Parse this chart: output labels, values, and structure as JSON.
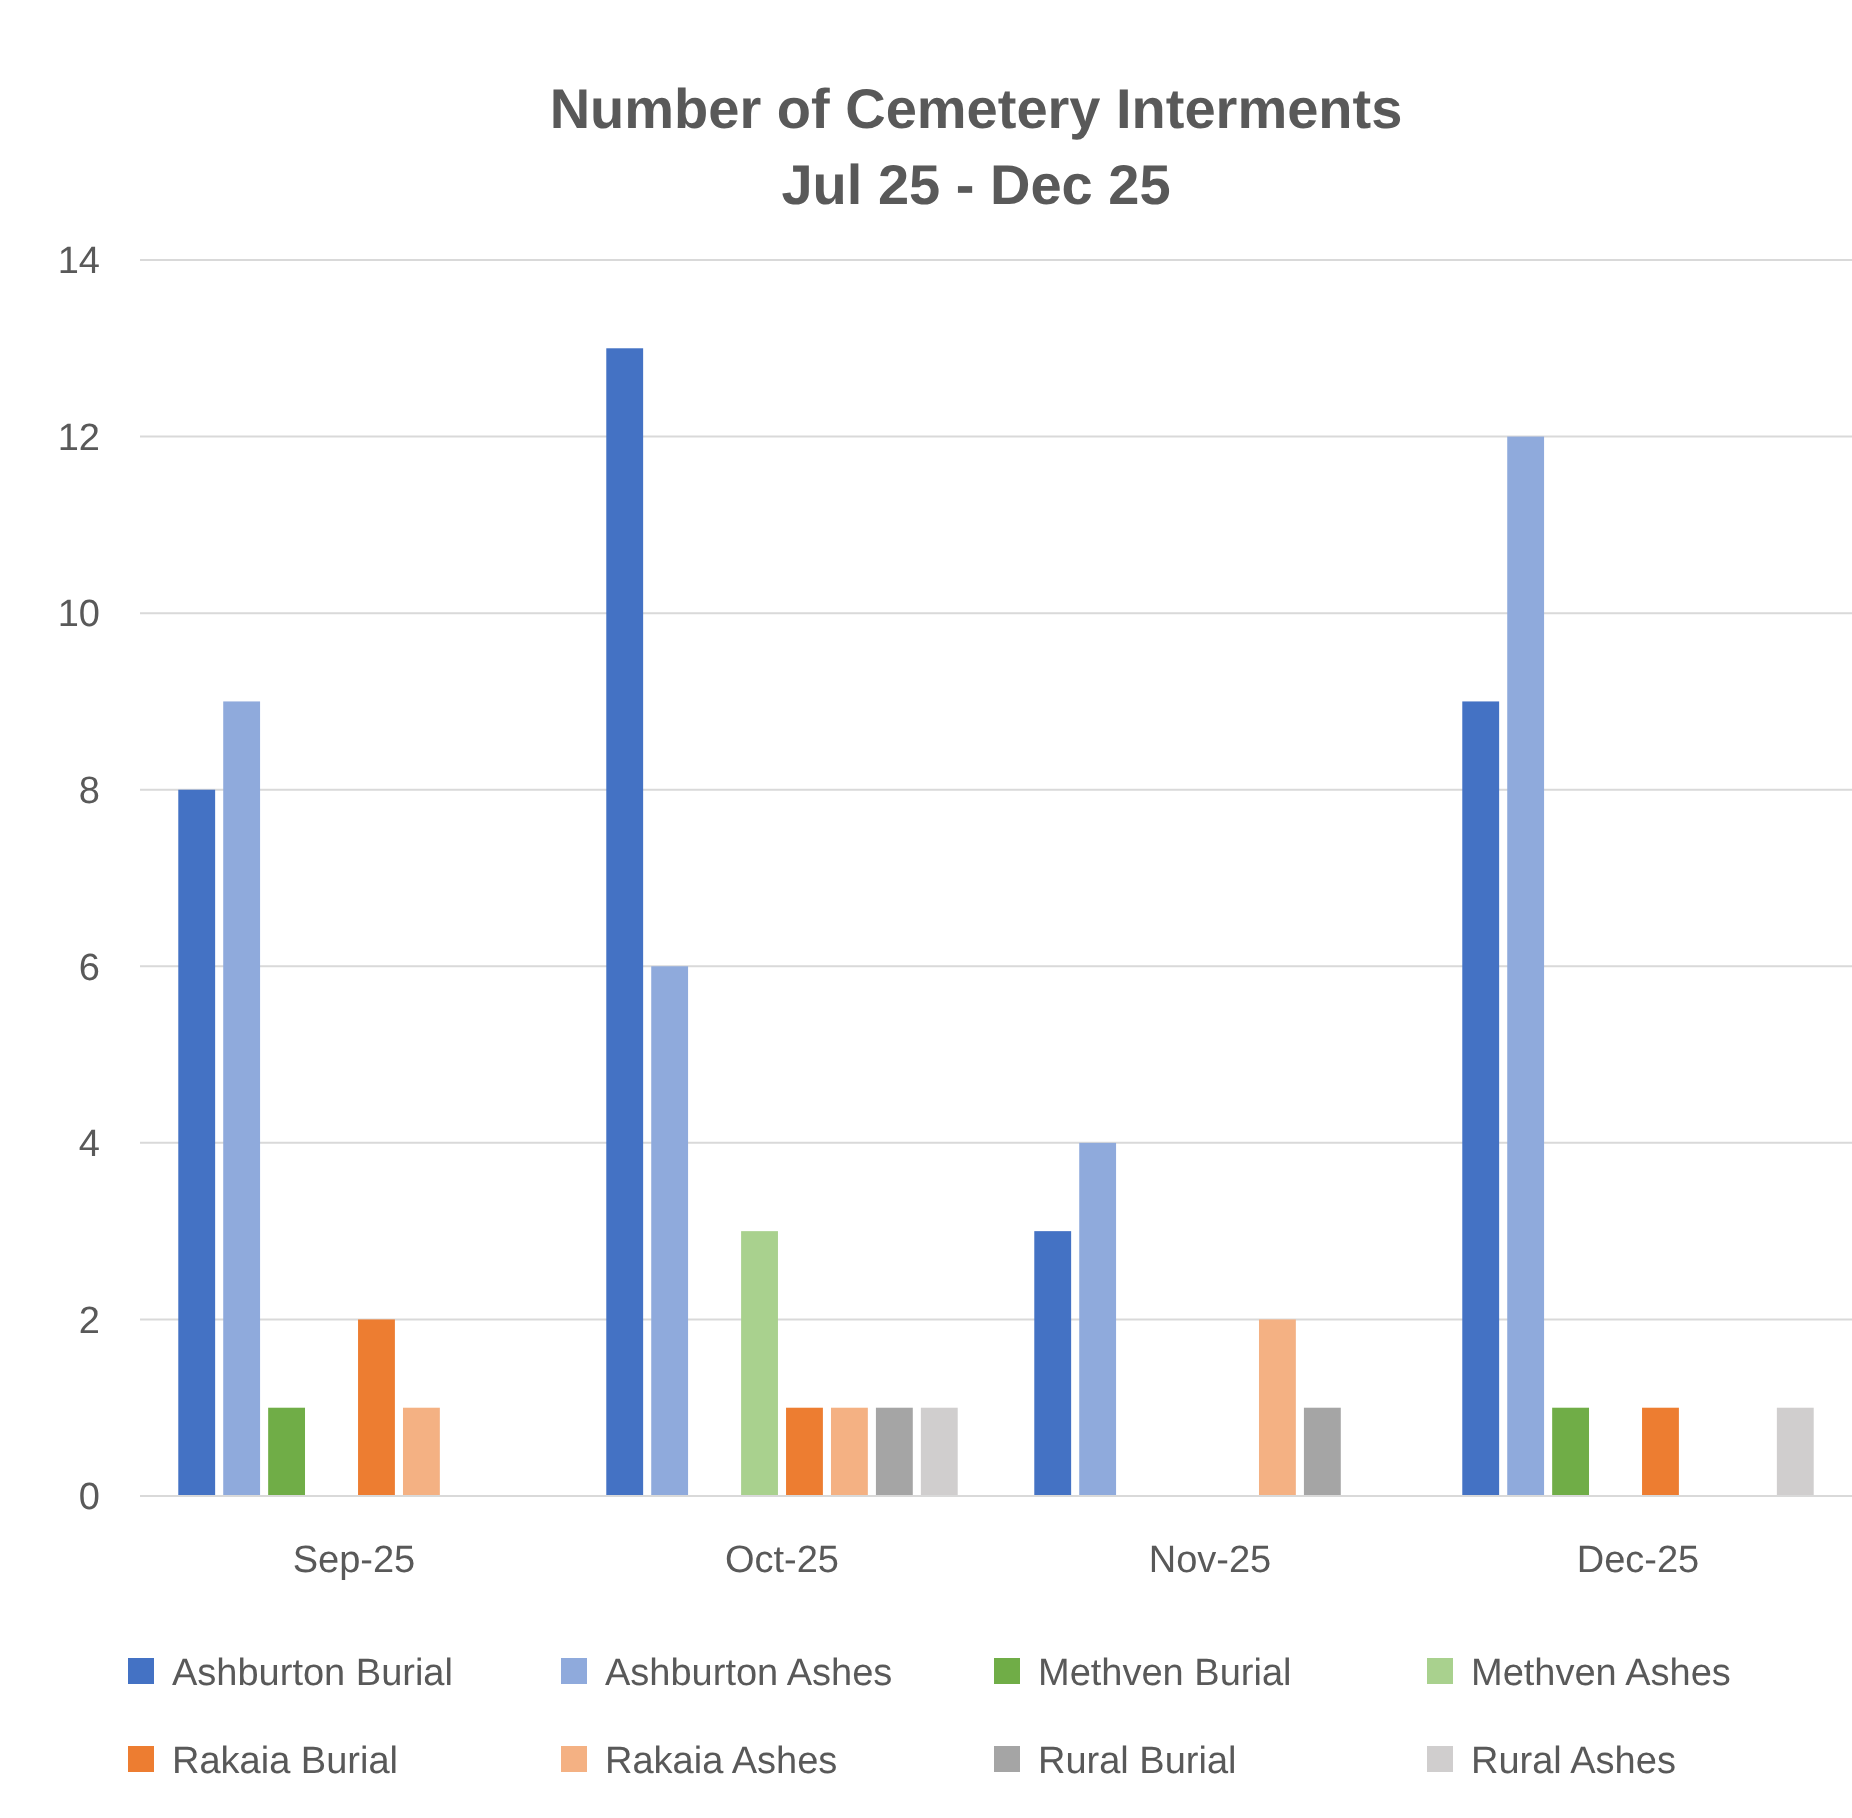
{
  "chart_data": {
    "type": "bar",
    "title": "Number of Cemetery Interments\nJul 25 - Dec 25",
    "categories": [
      "Sep-25",
      "Oct-25",
      "Nov-25",
      "Dec-25"
    ],
    "series": [
      {
        "name": "Ashburton Burial",
        "color": "#4472c4",
        "values": [
          8,
          13,
          3,
          9
        ]
      },
      {
        "name": "Ashburton Ashes",
        "color": "#8faadc",
        "values": [
          9,
          6,
          4,
          12
        ]
      },
      {
        "name": "Methven Burial",
        "color": "#70ad47",
        "values": [
          1,
          0,
          0,
          1
        ]
      },
      {
        "name": "Methven Ashes",
        "color": "#a9d18e",
        "values": [
          0,
          3,
          0,
          0
        ]
      },
      {
        "name": "Rakaia Burial",
        "color": "#ed7d31",
        "values": [
          2,
          1,
          0,
          1
        ]
      },
      {
        "name": "Rakaia Ashes",
        "color": "#f4b183",
        "values": [
          1,
          1,
          2,
          0
        ]
      },
      {
        "name": "Rural Burial",
        "color": "#a5a5a5",
        "values": [
          0,
          1,
          1,
          0
        ]
      },
      {
        "name": "Rural Ashes",
        "color": "#d0cece",
        "values": [
          0,
          1,
          0,
          1
        ]
      }
    ],
    "ylim": [
      0,
      14
    ],
    "yticks": [
      0,
      2,
      4,
      6,
      8,
      10,
      12,
      14
    ],
    "grid": "y",
    "legend": "bottom"
  }
}
